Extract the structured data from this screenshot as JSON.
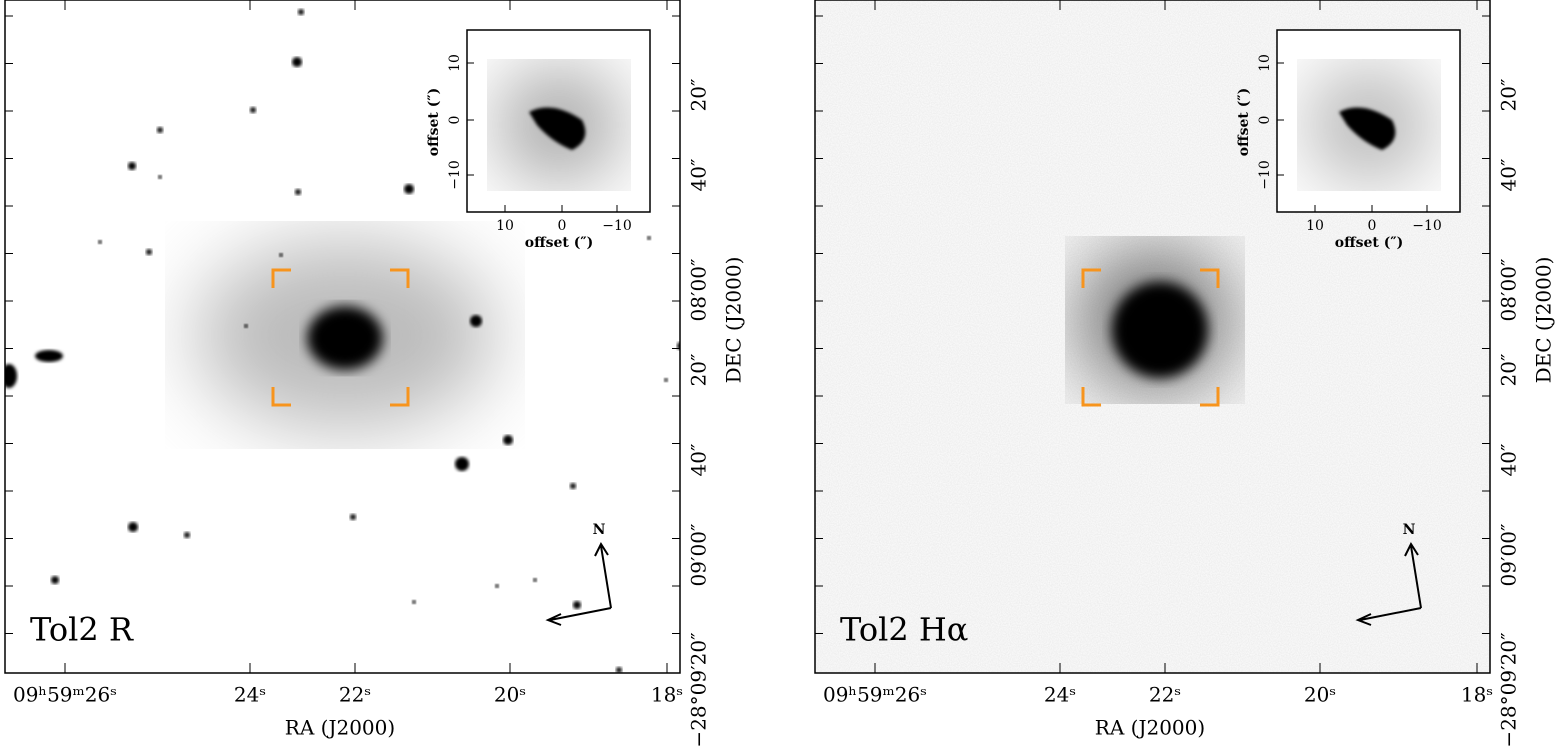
{
  "panels": [
    {
      "label": "Tol2 R",
      "ra_ticks": [
        "09ʰ59ᵐ26ˢ",
        "24ˢ",
        "22ˢ",
        "20ˢ",
        "18ˢ"
      ],
      "ra_axis_label": "RA (J2000)",
      "dec_ticks": [
        "20″",
        "40″",
        "08′00″",
        "20″",
        "40″",
        "09′00″",
        "−28°09′20″"
      ],
      "dec_axis_label": "DEC (J2000)",
      "inset": {
        "x_label": "offset (″)",
        "y_label": "offset (″)",
        "x_ticks": [
          "10",
          "0",
          "−10"
        ],
        "y_ticks": [
          "10",
          "0",
          "−10"
        ]
      },
      "compass": "N"
    },
    {
      "label": "Tol2 Hα",
      "ra_ticks": [
        "09ʰ59ᵐ26ˢ",
        "24ˢ",
        "22ˢ",
        "20ˢ",
        "18ˢ"
      ],
      "ra_axis_label": "RA (J2000)",
      "dec_ticks": [
        "20″",
        "40″",
        "08′00″",
        "20″",
        "40″",
        "09′00″",
        "−28°09′20″"
      ],
      "dec_axis_label": "DEC (J2000)",
      "inset": {
        "x_label": "offset (″)",
        "y_label": "offset (″)",
        "x_ticks": [
          "10",
          "0",
          "−10"
        ],
        "y_ticks": [
          "10",
          "0",
          "−10"
        ]
      },
      "compass": "N"
    }
  ]
}
